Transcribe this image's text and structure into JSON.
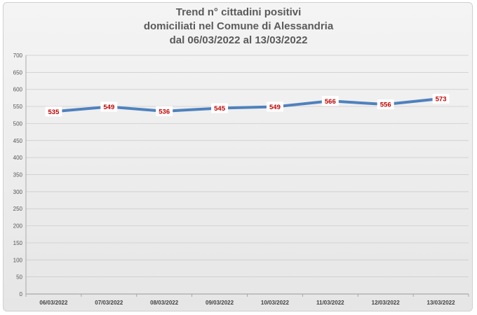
{
  "chart_data": {
    "type": "line",
    "title_lines": [
      "Trend n° cittadini positivi",
      "domiciliati nel Comune di Alessandria",
      "dal 06/03/2022 al 13/03/2022"
    ],
    "categories": [
      "06/03/2022",
      "07/03/2022",
      "08/03/2022",
      "09/03/2022",
      "10/03/2022",
      "11/03/2022",
      "12/03/2022",
      "13/03/2022"
    ],
    "series": [
      {
        "values": [
          535,
          549,
          536,
          545,
          549,
          566,
          556,
          573
        ]
      }
    ],
    "ylim": [
      0,
      700
    ],
    "yticks": [
      0,
      50,
      100,
      150,
      200,
      250,
      300,
      350,
      400,
      450,
      500,
      550,
      600,
      650,
      700
    ],
    "xlabel": "",
    "ylabel": "",
    "grid": true,
    "legend": "none",
    "data_labels": true,
    "colors": {
      "line": "#4f81bd",
      "label_text": "#c00000",
      "label_bg": "#ffffff",
      "title": "#5a5a5a"
    }
  }
}
